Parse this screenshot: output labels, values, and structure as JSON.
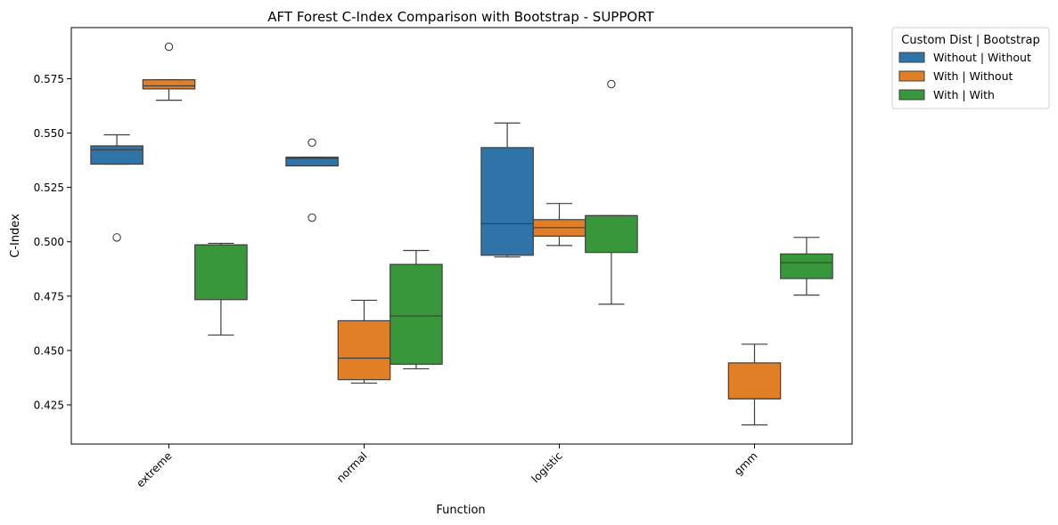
{
  "chart_data": {
    "type": "boxplot",
    "title": "AFT Forest C-Index Comparison with Bootstrap - SUPPORT",
    "xlabel": "Function",
    "ylabel": "C-Index",
    "categories": [
      "extreme",
      "normal",
      "logistic",
      "gmm"
    ],
    "ylim": [
      0.407,
      0.5985
    ],
    "yticks": [
      0.425,
      0.45,
      0.475,
      0.5,
      0.525,
      0.55,
      0.575
    ],
    "ytick_labels": [
      "0.425",
      "0.450",
      "0.475",
      "0.500",
      "0.525",
      "0.550",
      "0.575"
    ],
    "grid": false,
    "legend": {
      "title": "Custom Dist | Bootstrap",
      "placement": "outside-top-right"
    },
    "series": [
      {
        "name": "Without | Without",
        "color": "#2e74a9",
        "boxes": [
          {
            "category": "extreme",
            "whisker_low": 0.5357,
            "q1": 0.5357,
            "median": 0.5423,
            "q3": 0.5441,
            "whisker_high": 0.5492,
            "outliers": [
              0.502
            ]
          },
          {
            "category": "normal",
            "whisker_low": 0.5349,
            "q1": 0.5349,
            "median": 0.5384,
            "q3": 0.5389,
            "whisker_high": 0.5389,
            "outliers": [
              0.5456,
              0.5111
            ]
          },
          {
            "category": "logistic",
            "whisker_low": 0.493,
            "q1": 0.4938,
            "median": 0.5083,
            "q3": 0.5433,
            "whisker_high": 0.5546,
            "outliers": []
          }
        ]
      },
      {
        "name": "With | Without",
        "color": "#e07f26",
        "boxes": [
          {
            "category": "extreme",
            "whisker_low": 0.5651,
            "q1": 0.5703,
            "median": 0.5717,
            "q3": 0.5745,
            "whisker_high": 0.5745,
            "outliers": [
              0.5897
            ]
          },
          {
            "category": "normal",
            "whisker_low": 0.435,
            "q1": 0.4366,
            "median": 0.4465,
            "q3": 0.4637,
            "whisker_high": 0.4731,
            "outliers": []
          },
          {
            "category": "logistic",
            "whisker_low": 0.4983,
            "q1": 0.5026,
            "median": 0.5065,
            "q3": 0.5102,
            "whisker_high": 0.5176,
            "outliers": []
          },
          {
            "category": "gmm",
            "whisker_low": 0.4158,
            "q1": 0.4278,
            "median": 0.4278,
            "q3": 0.4443,
            "whisker_high": 0.4529,
            "outliers": []
          }
        ]
      },
      {
        "name": "With | With",
        "color": "#37973a",
        "boxes": [
          {
            "category": "extreme",
            "whisker_low": 0.4571,
            "q1": 0.4734,
            "median": 0.4986,
            "q3": 0.4986,
            "whisker_high": 0.4993,
            "outliers": []
          },
          {
            "category": "normal",
            "whisker_low": 0.4416,
            "q1": 0.4437,
            "median": 0.4659,
            "q3": 0.4896,
            "whisker_high": 0.496,
            "outliers": []
          },
          {
            "category": "logistic",
            "whisker_low": 0.4713,
            "q1": 0.4951,
            "median": 0.512,
            "q3": 0.512,
            "whisker_high": 0.512,
            "outliers": [
              0.5725
            ]
          },
          {
            "category": "gmm",
            "whisker_low": 0.4755,
            "q1": 0.4831,
            "median": 0.4904,
            "q3": 0.4944,
            "whisker_high": 0.502,
            "outliers": []
          }
        ]
      }
    ]
  }
}
